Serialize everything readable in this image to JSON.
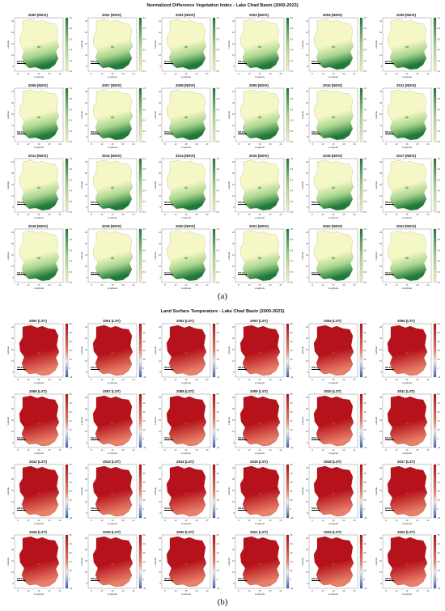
{
  "ndvi": {
    "title": "Normalized Difference Vegetation Index - Lake Chad Basin (2000-2023)",
    "label": "(a)",
    "suffix": "(NDVI)",
    "colorbar_ticks": [
      "1.0",
      "0.8",
      "0.6",
      "0.4",
      "0.2",
      "0.0"
    ],
    "colors": {
      "low": "#f6f7c6",
      "mid": "#a8d58e",
      "high": "#1f7a3a"
    }
  },
  "lst": {
    "title": "Land Surface Temperature - Lake Chad Basin (2000-2023)",
    "label": "(b)",
    "suffix": "(LST)",
    "colorbar_ticks": [
      "50",
      "40",
      "30",
      "20",
      "10",
      "0",
      "-10"
    ],
    "colors": {
      "low": "#3a5fb8",
      "mid": "#e8806a",
      "high": "#b5121b"
    }
  },
  "years": [
    "2000",
    "2001",
    "2002",
    "2003",
    "2004",
    "2005",
    "2006",
    "2007",
    "2008",
    "2009",
    "2010",
    "2011",
    "2012",
    "2013",
    "2014",
    "2015",
    "2016",
    "2017",
    "2018",
    "2019",
    "2020",
    "2021",
    "2022",
    "2023"
  ],
  "axes": {
    "xlabel": "Longitude",
    "ylabel": "Latitude",
    "xticks": [
      "8",
      "12",
      "16",
      "20",
      "24"
    ],
    "yticks": [
      "24",
      "20",
      "16",
      "12",
      "8"
    ],
    "scale_bar": "500 km"
  }
}
